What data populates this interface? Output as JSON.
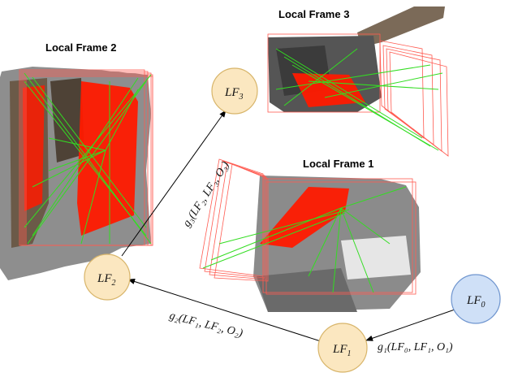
{
  "frames": [
    {
      "id": "frame-2",
      "title": "Local Frame 2"
    },
    {
      "id": "frame-3",
      "title": "Local Frame 3"
    },
    {
      "id": "frame-1",
      "title": "Local Frame 1"
    }
  ],
  "nodes": {
    "lf0": {
      "label": "LF",
      "sub": "0",
      "fill": "#cfe0f7",
      "stroke": "#6f95cf"
    },
    "lf1": {
      "label": "LF",
      "sub": "1",
      "fill": "#fbe7c0",
      "stroke": "#d8b56a"
    },
    "lf2": {
      "label": "LF",
      "sub": "2",
      "fill": "#fbe7c0",
      "stroke": "#d8b56a"
    },
    "lf3": {
      "label": "LF",
      "sub": "3",
      "fill": "#fbe7c0",
      "stroke": "#d8b56a"
    }
  },
  "edges": {
    "g1": "g₁(LF₀, LF₁, O₁)",
    "g2": "g₂(LF₁, LF₂, O₂)",
    "g3": "g₃(LF₂, LF₃, O₃)"
  },
  "colors": {
    "plane": "#ff1a00",
    "correspondence": "#33dd22",
    "camera": "#ff5a50"
  }
}
